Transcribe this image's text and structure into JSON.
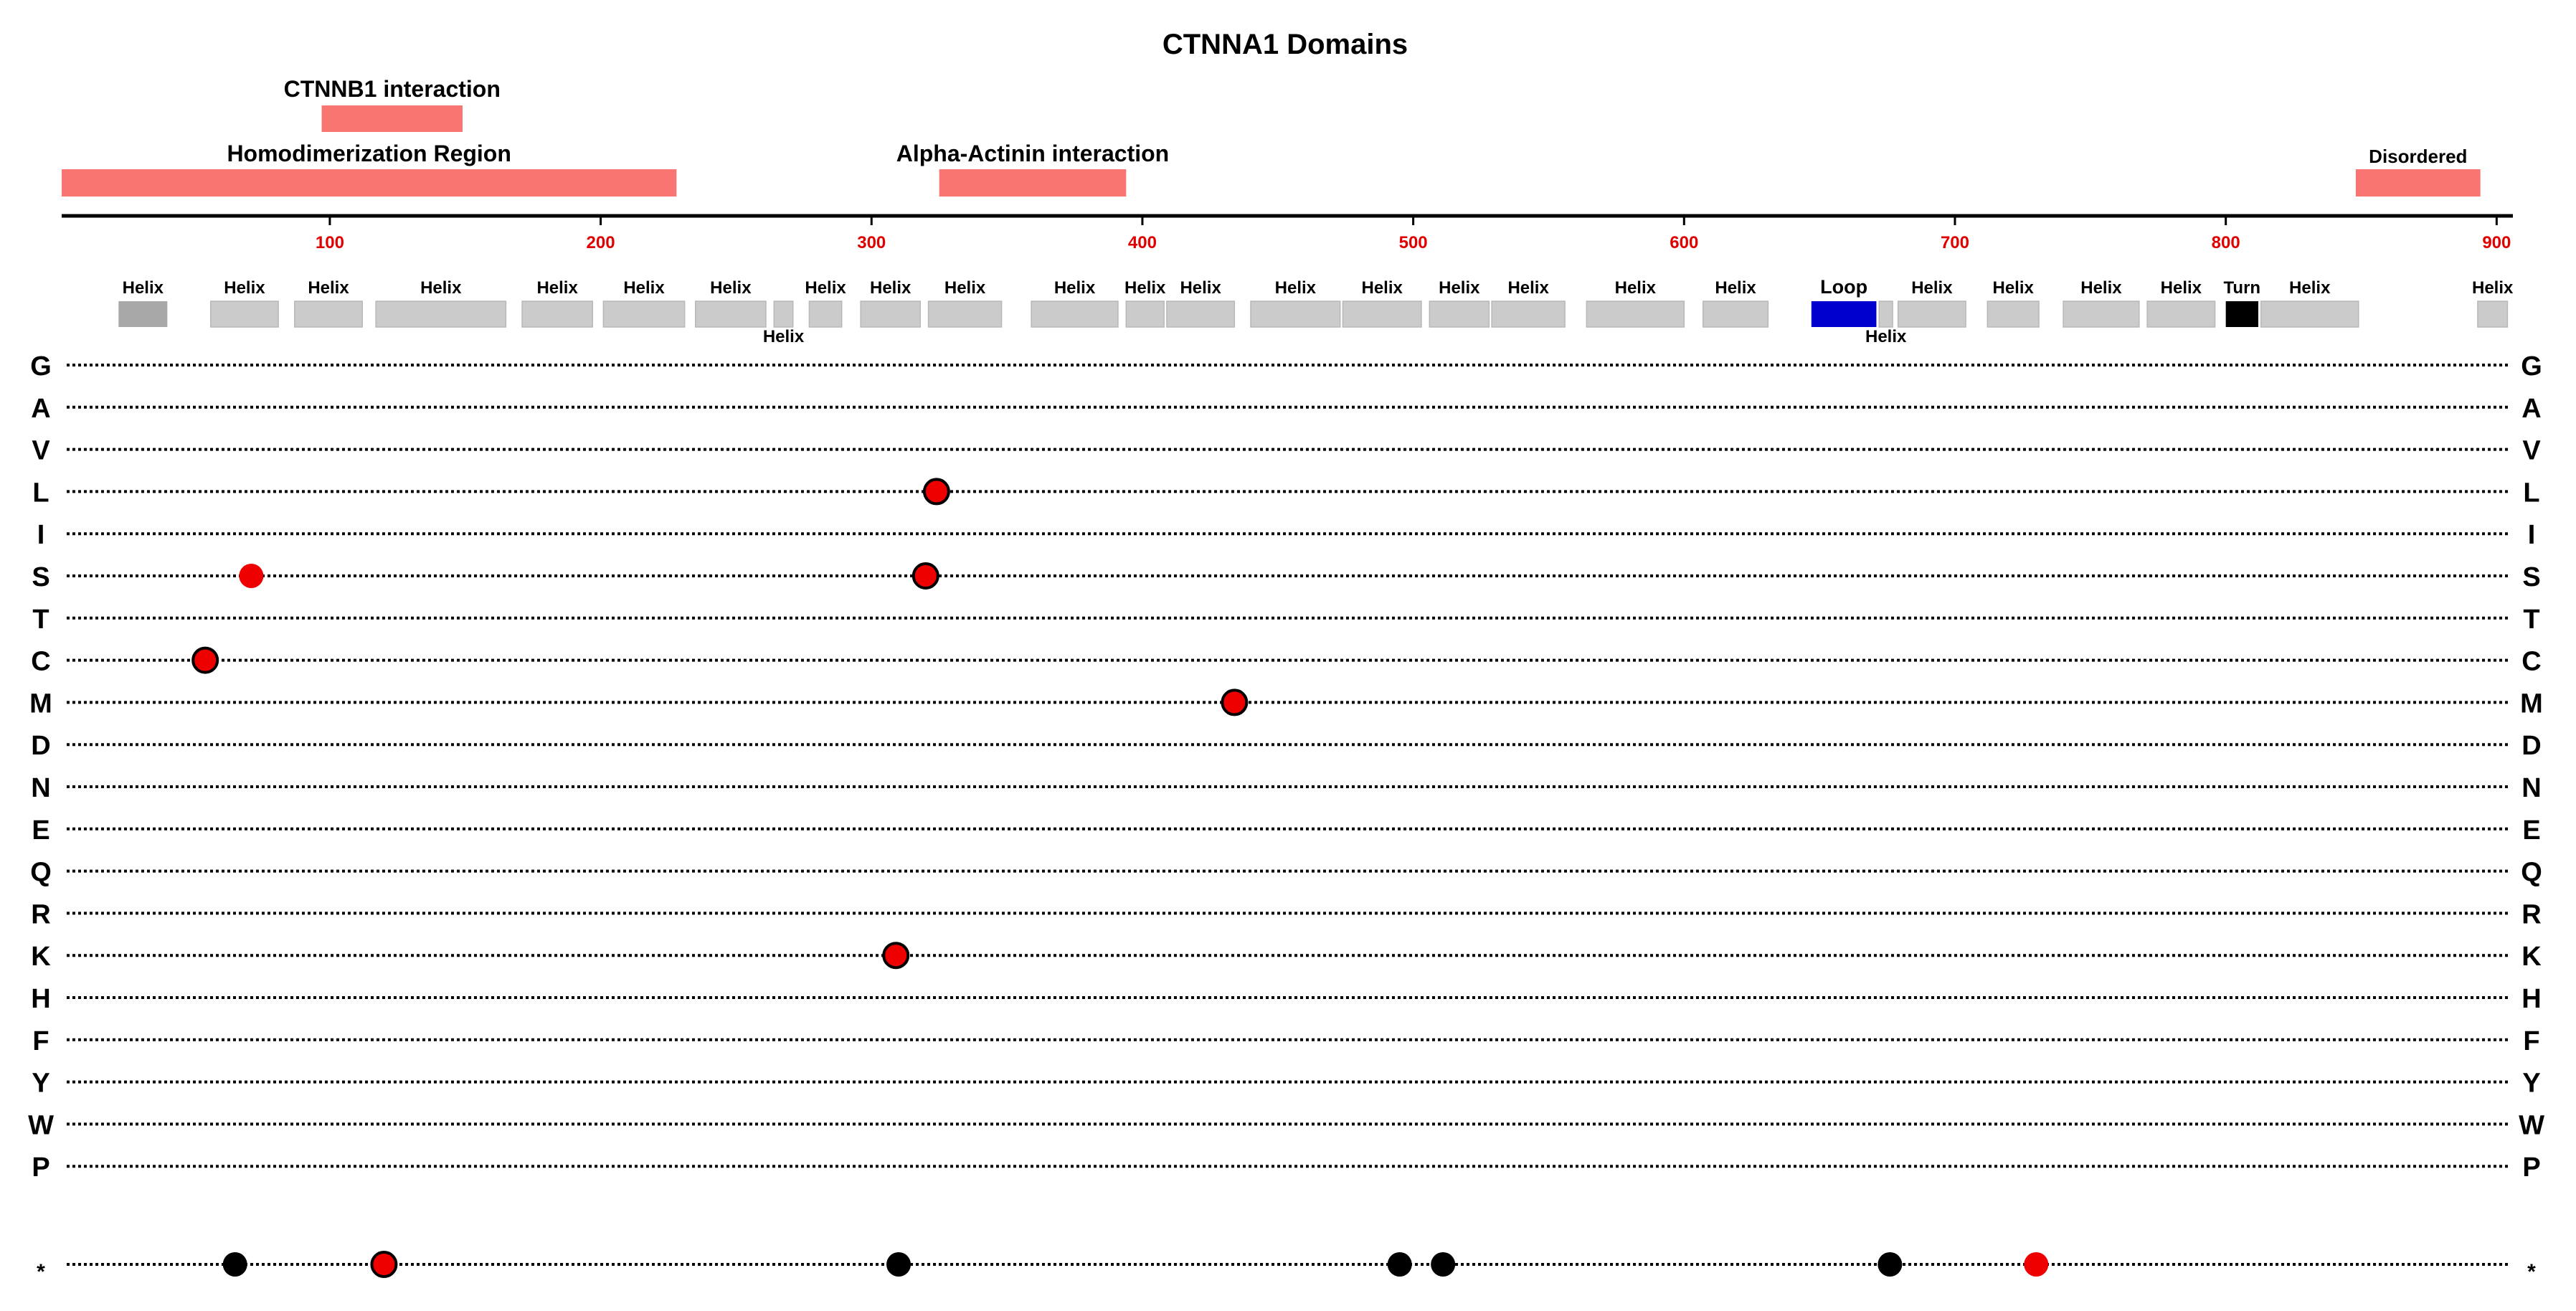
{
  "title": "CTNNA1 Domains",
  "axis": {
    "range": [
      1,
      906
    ],
    "ticks": [
      "100",
      "200",
      "300",
      "400",
      "500",
      "600",
      "700",
      "800",
      "900"
    ],
    "tick_color": "#e00000"
  },
  "colors": {
    "region": "#f87571",
    "helix": "#cbcbcb",
    "helix_dark": "#a8a8a8",
    "loop": "#0000cc",
    "turn": "#000000",
    "mut_red": "#ee0000",
    "mut_black": "#000000"
  },
  "regions": [
    {
      "label": "CTNNB1 interaction",
      "start": 97,
      "end": 149,
      "row": "upper"
    },
    {
      "label": "Homodimerization Region",
      "start": 1,
      "end": 228,
      "row": "lower"
    },
    {
      "label": "Alpha-Actinin interaction",
      "start": 325,
      "end": 394,
      "row": "lower"
    },
    {
      "label": "Disordered",
      "start": 848,
      "end": 894,
      "row": "lower"
    }
  ],
  "features": [
    {
      "label": "Helix",
      "type": "helix_dark",
      "start": 22,
      "end": 40,
      "label_pos": "above"
    },
    {
      "label": "Helix",
      "type": "helix",
      "start": 56,
      "end": 81,
      "label_pos": "above"
    },
    {
      "label": "Helix",
      "type": "helix",
      "start": 87,
      "end": 112,
      "label_pos": "above"
    },
    {
      "label": "Helix",
      "type": "helix",
      "start": 117,
      "end": 165,
      "label_pos": "above"
    },
    {
      "label": "Helix",
      "type": "helix",
      "start": 171,
      "end": 197,
      "label_pos": "above"
    },
    {
      "label": "Helix",
      "type": "helix",
      "start": 201,
      "end": 231,
      "label_pos": "above"
    },
    {
      "label": "Helix",
      "type": "helix",
      "start": 235,
      "end": 261,
      "label_pos": "above"
    },
    {
      "label": "Helix",
      "type": "helix",
      "start": 264,
      "end": 271,
      "label_pos": "below"
    },
    {
      "label": "Helix",
      "type": "helix",
      "start": 277,
      "end": 289,
      "label_pos": "above"
    },
    {
      "label": "Helix",
      "type": "helix",
      "start": 296,
      "end": 318,
      "label_pos": "above"
    },
    {
      "label": "Helix",
      "type": "helix",
      "start": 321,
      "end": 348,
      "label_pos": "above"
    },
    {
      "label": "Helix",
      "type": "helix",
      "start": 359,
      "end": 391,
      "label_pos": "above"
    },
    {
      "label": "Helix",
      "type": "helix",
      "start": 394,
      "end": 408,
      "label_pos": "above"
    },
    {
      "label": "Helix",
      "type": "helix",
      "start": 409,
      "end": 434,
      "label_pos": "above"
    },
    {
      "label": "Helix",
      "type": "helix",
      "start": 440,
      "end": 473,
      "label_pos": "above"
    },
    {
      "label": "Helix",
      "type": "helix",
      "start": 474,
      "end": 503,
      "label_pos": "above"
    },
    {
      "label": "Helix",
      "type": "helix",
      "start": 506,
      "end": 528,
      "label_pos": "above"
    },
    {
      "label": "Helix",
      "type": "helix",
      "start": 529,
      "end": 556,
      "label_pos": "above"
    },
    {
      "label": "Helix",
      "type": "helix",
      "start": 564,
      "end": 600,
      "label_pos": "above"
    },
    {
      "label": "Helix",
      "type": "helix",
      "start": 607,
      "end": 631,
      "label_pos": "above"
    },
    {
      "label": "Loop",
      "type": "loop",
      "start": 647,
      "end": 671,
      "label_pos": "above"
    },
    {
      "label": "Helix",
      "type": "helix",
      "start": 672,
      "end": 677,
      "label_pos": "below"
    },
    {
      "label": "Helix",
      "type": "helix",
      "start": 679,
      "end": 704,
      "label_pos": "above"
    },
    {
      "label": "Helix",
      "type": "helix",
      "start": 712,
      "end": 731,
      "label_pos": "above"
    },
    {
      "label": "Helix",
      "type": "helix",
      "start": 740,
      "end": 768,
      "label_pos": "above"
    },
    {
      "label": "Helix",
      "type": "helix",
      "start": 771,
      "end": 796,
      "label_pos": "above"
    },
    {
      "label": "Turn",
      "type": "turn",
      "start": 800,
      "end": 812,
      "label_pos": "above"
    },
    {
      "label": "Helix",
      "type": "helix",
      "start": 813,
      "end": 849,
      "label_pos": "above"
    },
    {
      "label": "Helix",
      "type": "helix",
      "start": 893,
      "end": 904,
      "label_pos": "above"
    }
  ],
  "residues": [
    "G",
    "A",
    "V",
    "L",
    "I",
    "S",
    "T",
    "C",
    "M",
    "D",
    "N",
    "E",
    "Q",
    "R",
    "K",
    "H",
    "F",
    "Y",
    "W",
    "P",
    "*"
  ],
  "mutations": [
    {
      "residue": "L",
      "position": 324,
      "color": "red",
      "outlined": true
    },
    {
      "residue": "S",
      "position": 71,
      "color": "red",
      "outlined": false
    },
    {
      "residue": "S",
      "position": 320,
      "color": "red",
      "outlined": true
    },
    {
      "residue": "C",
      "position": 54,
      "color": "red",
      "outlined": true
    },
    {
      "residue": "M",
      "position": 434,
      "color": "red",
      "outlined": true
    },
    {
      "residue": "K",
      "position": 309,
      "color": "red",
      "outlined": true
    },
    {
      "residue": "*",
      "position": 65,
      "color": "black",
      "outlined": false
    },
    {
      "residue": "*",
      "position": 120,
      "color": "red",
      "outlined": true
    },
    {
      "residue": "*",
      "position": 310,
      "color": "black",
      "outlined": false
    },
    {
      "residue": "*",
      "position": 495,
      "color": "black",
      "outlined": false
    },
    {
      "residue": "*",
      "position": 511,
      "color": "black",
      "outlined": false
    },
    {
      "residue": "*",
      "position": 676,
      "color": "black",
      "outlined": false
    },
    {
      "residue": "*",
      "position": 730,
      "color": "red",
      "outlined": false
    }
  ]
}
